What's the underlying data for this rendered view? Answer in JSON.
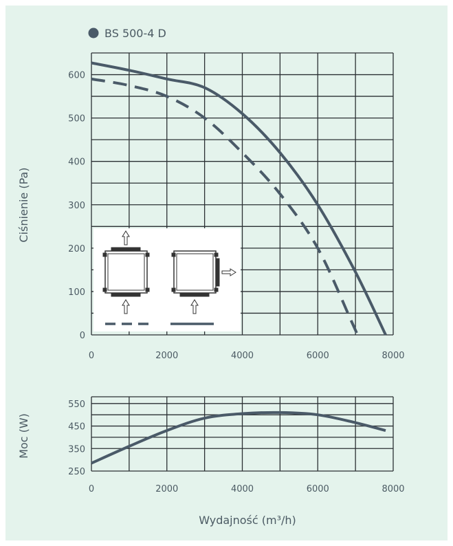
{
  "chart_data": [
    {
      "type": "line",
      "legend": {
        "label": "BS 500-4 D",
        "position": "top-left",
        "color": "#4a5a68"
      },
      "xlabel": "",
      "ylabel": "Ciśnienie (Pa)",
      "xlim": [
        0,
        8000
      ],
      "ylim": [
        0,
        650
      ],
      "x_ticks": [
        "0",
        "2000",
        "4000",
        "6000",
        "8000"
      ],
      "y_ticks": [
        "0",
        "100",
        "200",
        "300",
        "400",
        "500",
        "600"
      ],
      "grid": true,
      "series": [
        {
          "style": "dashed",
          "x": [
            0,
            1000,
            2000,
            3000,
            4000,
            5000,
            6000,
            6900,
            7050
          ],
          "y": [
            590,
            575,
            550,
            500,
            420,
            325,
            200,
            30,
            0
          ]
        },
        {
          "style": "solid",
          "x": [
            0,
            1000,
            2000,
            3000,
            4000,
            5000,
            6000,
            7000,
            7800
          ],
          "y": [
            627,
            610,
            590,
            570,
            510,
            420,
            300,
            145,
            0
          ]
        }
      ],
      "inset": {
        "position": "bottom-left",
        "dashed_line_config": "inlet bottom, outlet top",
        "solid_line_config": "inlet bottom, outlet side"
      }
    },
    {
      "type": "line",
      "xlabel": "Wydajność (m³/h)",
      "ylabel": "Moc (W)",
      "xlim": [
        0,
        8000
      ],
      "ylim": [
        250,
        580
      ],
      "x_ticks": [
        "0",
        "2000",
        "4000",
        "6000",
        "8000"
      ],
      "y_ticks": [
        "250",
        "350",
        "450",
        "550"
      ],
      "grid": true,
      "series": [
        {
          "style": "solid",
          "x": [
            0,
            1000,
            2000,
            3000,
            4000,
            5000,
            6000,
            7000,
            7800
          ],
          "y": [
            285,
            360,
            430,
            485,
            505,
            510,
            500,
            465,
            430
          ]
        }
      ]
    }
  ],
  "colors": {
    "background": "#e4f3ec",
    "curve": "#4a5a68",
    "grid": "#2a2f33",
    "text": "#4b5a63"
  }
}
